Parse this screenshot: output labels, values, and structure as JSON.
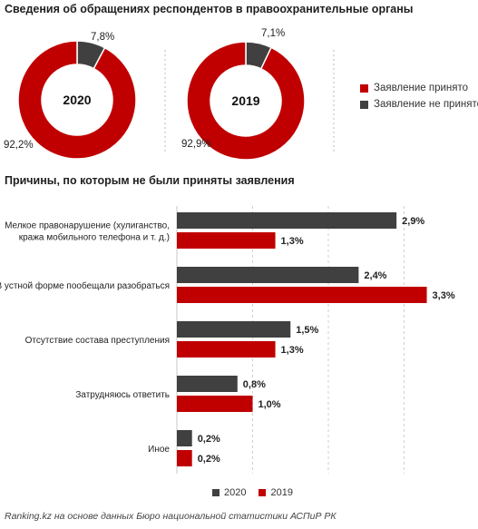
{
  "chart_data": [
    {
      "type": "pie",
      "variant": "donut",
      "title": "Сведения об обращениях респондентов в правоохранительные органы",
      "center_label": "2020",
      "slices": [
        {
          "name": "Заявление принято",
          "value": 92.2,
          "label": "92,2%",
          "color": "#c00000"
        },
        {
          "name": "Заявление не принято",
          "value": 7.8,
          "label": "7,8%",
          "color": "#404040"
        }
      ]
    },
    {
      "type": "pie",
      "variant": "donut",
      "center_label": "2019",
      "slices": [
        {
          "name": "Заявление принято",
          "value": 92.9,
          "label": "92,9%",
          "color": "#c00000"
        },
        {
          "name": "Заявление не принято",
          "value": 7.1,
          "label": "7,1%",
          "color": "#404040"
        }
      ]
    },
    {
      "type": "bar",
      "orientation": "horizontal",
      "title": "Причины, по которым не были приняты заявления",
      "categories": [
        [
          "Мелкое правонарушение (хулиганство,",
          "кража мобильного телефона и т. д.)"
        ],
        [
          "В устной форме пообещали разобраться"
        ],
        [
          "Отсутствие состава преступления"
        ],
        [
          "Затрудняюсь ответить"
        ],
        [
          "Иное"
        ]
      ],
      "series": [
        {
          "name": "2020",
          "color": "#404040",
          "values": [
            2.9,
            2.4,
            1.5,
            0.8,
            0.2
          ],
          "labels": [
            "2,9%",
            "2,4%",
            "1,5%",
            "0,8%",
            "0,2%"
          ]
        },
        {
          "name": "2019",
          "color": "#c00000",
          "values": [
            1.3,
            3.3,
            1.3,
            1.0,
            0.2
          ],
          "labels": [
            "1,3%",
            "3,3%",
            "1,3%",
            "1,0%",
            "0,2%"
          ]
        }
      ],
      "xlim": [
        0,
        3.6
      ],
      "grid": "vertical-dashed",
      "legend": "bottom"
    }
  ],
  "legend_top": [
    {
      "label": "Заявление принято",
      "color": "#c00000"
    },
    {
      "label": "Заявление не принято",
      "color": "#404040"
    }
  ],
  "bottom_legend": [
    {
      "label": "2020",
      "color": "#404040"
    },
    {
      "label": "2019",
      "color": "#c00000"
    }
  ],
  "source": "Ranking.kz на основе данных Бюро национальной статистики АСПиР РК"
}
